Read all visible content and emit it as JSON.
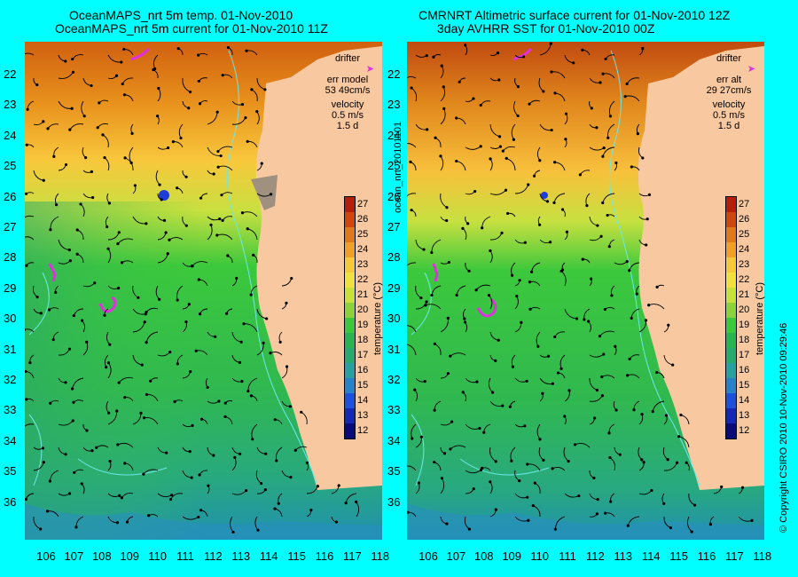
{
  "panels": [
    {
      "title1": "OceanMAPS_nrt 5m temp. 01-Nov-2010",
      "title2": "OceanMAPS_nrt 5m current for 01-Nov-2010 11Z",
      "legend": {
        "drifter": "drifter",
        "err_label": "err model",
        "err_value": "53 49cm/s",
        "velocity": "velocity",
        "scale": "0.5 m/s",
        "time": "1.5 d"
      }
    },
    {
      "title1": "CMRNRT Altimetric surface current for 01-Nov-2010 12Z",
      "title2": "3day AVHRR SST for 01-Nov-2010 00Z",
      "legend": {
        "drifter": "drifter",
        "err_label": "err alt",
        "err_value": "29 27cm/s",
        "velocity": "velocity",
        "scale": "0.5 m/s",
        "time": "1.5 d"
      }
    }
  ],
  "lat_ticks": [
    "22",
    "23",
    "24",
    "25",
    "26",
    "27",
    "28",
    "29",
    "30",
    "31",
    "32",
    "33",
    "34",
    "35",
    "36"
  ],
  "lon_ticks": [
    "106",
    "107",
    "108",
    "109",
    "110",
    "111",
    "112",
    "113",
    "114",
    "115",
    "116",
    "117",
    "118"
  ],
  "colorbar": {
    "title": "temperature (°C)",
    "ticks": [
      "27",
      "26",
      "25",
      "24",
      "23",
      "22",
      "21",
      "20",
      "19",
      "18",
      "17",
      "16",
      "15",
      "14",
      "13",
      "12"
    ],
    "colors": [
      "#b41e0a",
      "#d0460c",
      "#e0781e",
      "#f0a028",
      "#f8c83c",
      "#f0e040",
      "#c8e03c",
      "#8cd23c",
      "#3cc83c",
      "#28b450",
      "#28aa6e",
      "#28a0a0",
      "#2882c8",
      "#1e50dc",
      "#1428b4",
      "#0a0a78"
    ]
  },
  "side_label": "ocean_nrt_20101101",
  "copyright": "© Copyright CSIRO 2010   10-Nov-2010 09:29:46",
  "colors": {
    "land": "#f8c8a0",
    "water_warm": "#e07818",
    "water_mid": "#3cc83c",
    "water_cool": "#28a0b4",
    "drifter": "#e030e0"
  }
}
